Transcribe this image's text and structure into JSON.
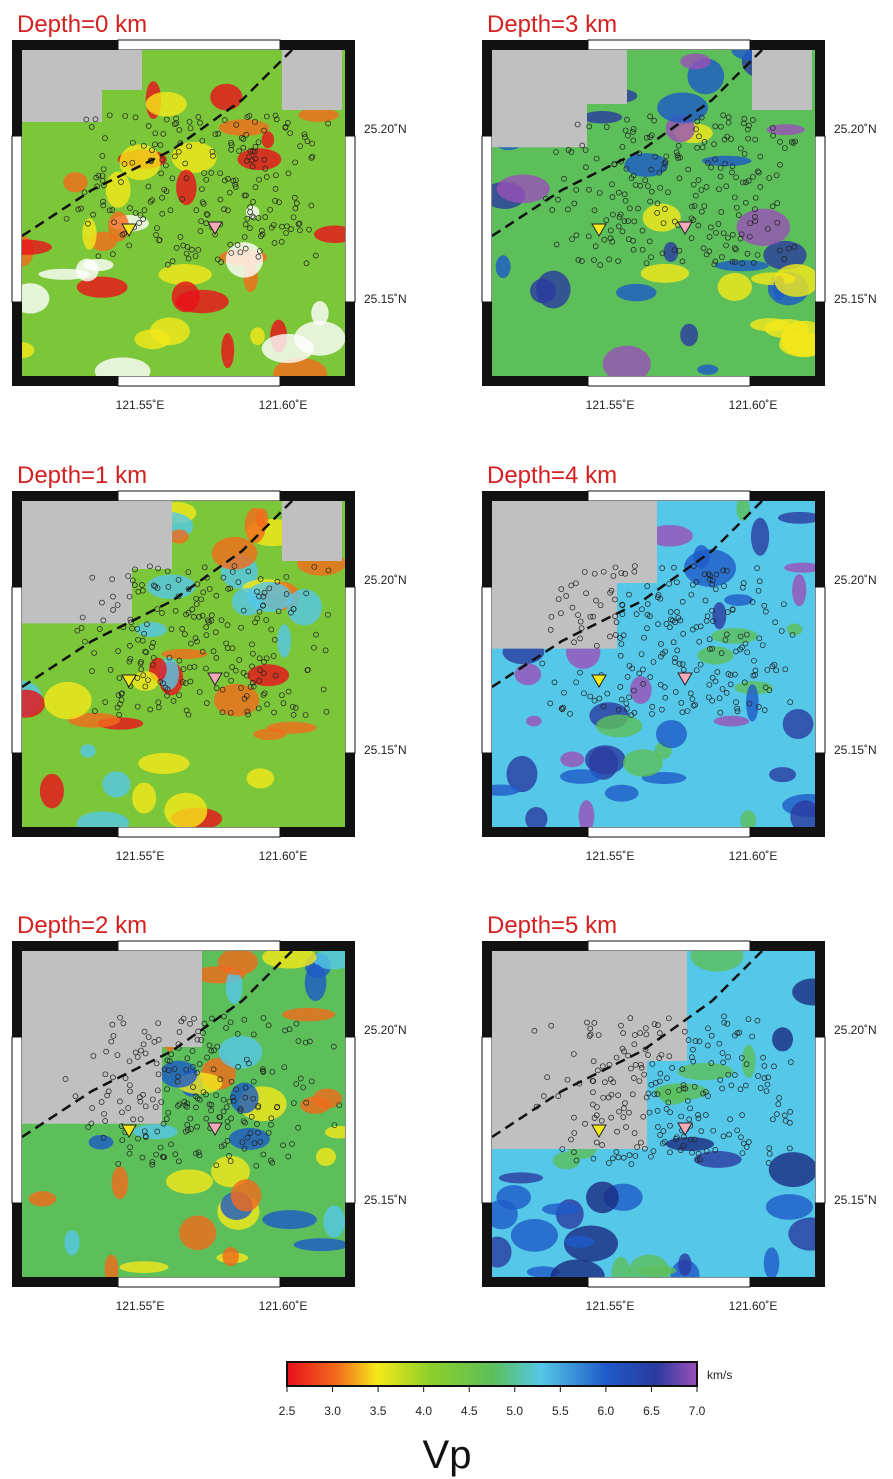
{
  "panels": [
    {
      "title": "Depth=0 km",
      "lon": [
        "121.55˚E",
        "121.60˚E"
      ],
      "lat": [
        "25.20˚N",
        "25.15˚N"
      ]
    },
    {
      "title": "Depth=3 km",
      "lon": [
        "121.55˚E",
        "121.60˚E"
      ],
      "lat": [
        "25.20˚N",
        "25.15˚N"
      ]
    },
    {
      "title": "Depth=1 km",
      "lon": [
        "121.55˚E",
        "121.60˚E"
      ],
      "lat": [
        "25.20˚N",
        "25.15˚N"
      ]
    },
    {
      "title": "Depth=4 km",
      "lon": [
        "121.55˚E",
        "121.60˚E"
      ],
      "lat": [
        "25.20˚N",
        "25.15˚N"
      ]
    },
    {
      "title": "Depth=2 km",
      "lon": [
        "121.55˚E",
        "121.60˚E"
      ],
      "lat": [
        "25.20˚N",
        "25.15˚N"
      ]
    },
    {
      "title": "Depth=5 km",
      "lon": [
        "121.55˚E",
        "121.60˚E"
      ],
      "lat": [
        "25.20˚N",
        "25.15˚N"
      ]
    }
  ],
  "colorbar": {
    "unit": "km/s",
    "ticks": [
      "2.5",
      "3.0",
      "3.5",
      "4.0",
      "4.5",
      "5.0",
      "5.5",
      "6.0",
      "6.5",
      "7.0"
    ],
    "label": "Vp"
  }
}
